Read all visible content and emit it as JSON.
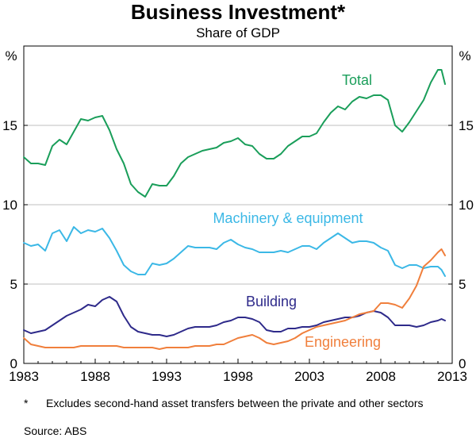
{
  "chart_data": {
    "type": "line",
    "title": "Business Investment*",
    "subtitle": "Share of GDP",
    "ylabel_left": "%",
    "ylabel_right": "%",
    "xlim": [
      1983,
      2013
    ],
    "ylim": [
      0,
      20
    ],
    "x_ticks": [
      1983,
      1988,
      1993,
      1998,
      2003,
      2008,
      2013
    ],
    "x_tick_labels": [
      "1983",
      "1988",
      "1993",
      "1998",
      "2003",
      "2008",
      "2013"
    ],
    "y_ticks": [
      0,
      5,
      10,
      15
    ],
    "y_tick_labels": [
      "0",
      "5",
      "10",
      "15"
    ],
    "gridlines": true,
    "colors": {
      "total": "#1a9e5a",
      "machinery": "#3bb8e6",
      "building": "#2e2a8a",
      "engineering": "#f07f3c",
      "grid": "#bfbfbf",
      "axis": "#000000"
    },
    "series": [
      {
        "key": "total",
        "name": "Total",
        "x": [
          1983.0,
          1983.5,
          1984.0,
          1984.5,
          1985.0,
          1985.5,
          1986.0,
          1986.5,
          1987.0,
          1987.5,
          1988.0,
          1988.5,
          1989.0,
          1989.5,
          1990.0,
          1990.5,
          1991.0,
          1991.5,
          1992.0,
          1992.5,
          1993.0,
          1993.5,
          1994.0,
          1994.5,
          1995.0,
          1995.5,
          1996.0,
          1996.5,
          1997.0,
          1997.5,
          1998.0,
          1998.5,
          1999.0,
          1999.5,
          2000.0,
          2000.5,
          2001.0,
          2001.5,
          2002.0,
          2002.5,
          2003.0,
          2003.5,
          2004.0,
          2004.5,
          2005.0,
          2005.5,
          2006.0,
          2006.5,
          2007.0,
          2007.5,
          2008.0,
          2008.5,
          2009.0,
          2009.5,
          2010.0,
          2010.5,
          2011.0,
          2011.5,
          2012.0,
          2012.25,
          2012.5
        ],
        "values": [
          13.0,
          12.6,
          12.6,
          12.5,
          13.7,
          14.1,
          13.8,
          14.6,
          15.4,
          15.3,
          15.5,
          15.6,
          14.7,
          13.5,
          12.6,
          11.3,
          10.8,
          10.5,
          11.3,
          11.2,
          11.2,
          11.8,
          12.6,
          13.0,
          13.2,
          13.4,
          13.5,
          13.6,
          13.9,
          14.0,
          14.2,
          13.8,
          13.7,
          13.2,
          12.9,
          12.9,
          13.2,
          13.7,
          14.0,
          14.3,
          14.3,
          14.5,
          15.2,
          15.8,
          16.2,
          16.0,
          16.5,
          16.8,
          16.7,
          16.9,
          16.9,
          16.6,
          15.0,
          14.6,
          15.2,
          15.9,
          16.6,
          17.7,
          18.5,
          18.5,
          17.6
        ]
      },
      {
        "key": "machinery",
        "name": "Machinery & equipment",
        "x": [
          1983.0,
          1983.5,
          1984.0,
          1984.5,
          1985.0,
          1985.5,
          1986.0,
          1986.5,
          1987.0,
          1987.5,
          1988.0,
          1988.5,
          1989.0,
          1989.5,
          1990.0,
          1990.5,
          1991.0,
          1991.5,
          1992.0,
          1992.5,
          1993.0,
          1993.5,
          1994.0,
          1994.5,
          1995.0,
          1995.5,
          1996.0,
          1996.5,
          1997.0,
          1997.5,
          1998.0,
          1998.5,
          1999.0,
          1999.5,
          2000.0,
          2000.5,
          2001.0,
          2001.5,
          2002.0,
          2002.5,
          2003.0,
          2003.5,
          2004.0,
          2004.5,
          2005.0,
          2005.5,
          2006.0,
          2006.5,
          2007.0,
          2007.5,
          2008.0,
          2008.5,
          2009.0,
          2009.5,
          2010.0,
          2010.5,
          2011.0,
          2011.5,
          2012.0,
          2012.25,
          2012.5
        ],
        "values": [
          7.6,
          7.4,
          7.5,
          7.1,
          8.2,
          8.4,
          7.7,
          8.6,
          8.2,
          8.4,
          8.3,
          8.5,
          7.9,
          7.1,
          6.2,
          5.8,
          5.6,
          5.6,
          6.3,
          6.2,
          6.3,
          6.6,
          7.0,
          7.4,
          7.3,
          7.3,
          7.3,
          7.2,
          7.6,
          7.8,
          7.5,
          7.3,
          7.2,
          7.0,
          7.0,
          7.0,
          7.1,
          7.0,
          7.2,
          7.4,
          7.4,
          7.2,
          7.6,
          7.9,
          8.2,
          7.9,
          7.6,
          7.7,
          7.7,
          7.6,
          7.3,
          7.1,
          6.2,
          6.0,
          6.2,
          6.2,
          6.0,
          6.1,
          6.1,
          5.9,
          5.5
        ]
      },
      {
        "key": "building",
        "name": "Building",
        "x": [
          1983.0,
          1983.5,
          1984.0,
          1984.5,
          1985.0,
          1985.5,
          1986.0,
          1986.5,
          1987.0,
          1987.5,
          1988.0,
          1988.5,
          1989.0,
          1989.5,
          1990.0,
          1990.5,
          1991.0,
          1991.5,
          1992.0,
          1992.5,
          1993.0,
          1993.5,
          1994.0,
          1994.5,
          1995.0,
          1995.5,
          1996.0,
          1996.5,
          1997.0,
          1997.5,
          1998.0,
          1998.5,
          1999.0,
          1999.5,
          2000.0,
          2000.5,
          2001.0,
          2001.5,
          2002.0,
          2002.5,
          2003.0,
          2003.5,
          2004.0,
          2004.5,
          2005.0,
          2005.5,
          2006.0,
          2006.5,
          2007.0,
          2007.5,
          2008.0,
          2008.5,
          2009.0,
          2009.5,
          2010.0,
          2010.5,
          2011.0,
          2011.5,
          2012.0,
          2012.25,
          2012.5
        ],
        "values": [
          2.1,
          1.9,
          2.0,
          2.1,
          2.4,
          2.7,
          3.0,
          3.2,
          3.4,
          3.7,
          3.6,
          4.0,
          4.2,
          3.9,
          3.0,
          2.3,
          2.0,
          1.9,
          1.8,
          1.8,
          1.7,
          1.8,
          2.0,
          2.2,
          2.3,
          2.3,
          2.3,
          2.4,
          2.6,
          2.7,
          2.9,
          2.9,
          2.8,
          2.6,
          2.1,
          2.0,
          2.0,
          2.2,
          2.2,
          2.3,
          2.3,
          2.4,
          2.6,
          2.7,
          2.8,
          2.9,
          2.9,
          3.0,
          3.2,
          3.3,
          3.2,
          2.9,
          2.4,
          2.4,
          2.4,
          2.3,
          2.4,
          2.6,
          2.7,
          2.8,
          2.7
        ]
      },
      {
        "key": "engineering",
        "name": "Engineering",
        "x": [
          1983.0,
          1983.5,
          1984.0,
          1984.5,
          1985.0,
          1985.5,
          1986.0,
          1986.5,
          1987.0,
          1987.5,
          1988.0,
          1988.5,
          1989.0,
          1989.5,
          1990.0,
          1990.5,
          1991.0,
          1991.5,
          1992.0,
          1992.5,
          1993.0,
          1993.5,
          1994.0,
          1994.5,
          1995.0,
          1995.5,
          1996.0,
          1996.5,
          1997.0,
          1997.5,
          1998.0,
          1998.5,
          1999.0,
          1999.5,
          2000.0,
          2000.5,
          2001.0,
          2001.5,
          2002.0,
          2002.5,
          2003.0,
          2003.5,
          2004.0,
          2004.5,
          2005.0,
          2005.5,
          2006.0,
          2006.5,
          2007.0,
          2007.5,
          2008.0,
          2008.5,
          2009.0,
          2009.5,
          2010.0,
          2010.5,
          2011.0,
          2011.5,
          2012.0,
          2012.25,
          2012.5
        ],
        "values": [
          1.6,
          1.2,
          1.1,
          1.0,
          1.0,
          1.0,
          1.0,
          1.0,
          1.1,
          1.1,
          1.1,
          1.1,
          1.1,
          1.1,
          1.0,
          1.0,
          1.0,
          1.0,
          1.0,
          0.9,
          1.0,
          1.0,
          1.0,
          1.0,
          1.1,
          1.1,
          1.1,
          1.2,
          1.2,
          1.4,
          1.6,
          1.7,
          1.8,
          1.6,
          1.3,
          1.2,
          1.3,
          1.4,
          1.6,
          1.9,
          2.1,
          2.3,
          2.4,
          2.5,
          2.6,
          2.7,
          2.9,
          3.1,
          3.2,
          3.3,
          3.8,
          3.8,
          3.7,
          3.5,
          4.1,
          4.9,
          6.1,
          6.5,
          7.0,
          7.2,
          6.8
        ]
      }
    ],
    "labels": {
      "total": "Total",
      "machinery": "Machinery & equipment",
      "building": "Building",
      "engineering": "Engineering"
    },
    "footnote_marker": "*",
    "footnote": "Excludes second-hand asset transfers between the private and other sectors",
    "source": "Source: ABS"
  }
}
